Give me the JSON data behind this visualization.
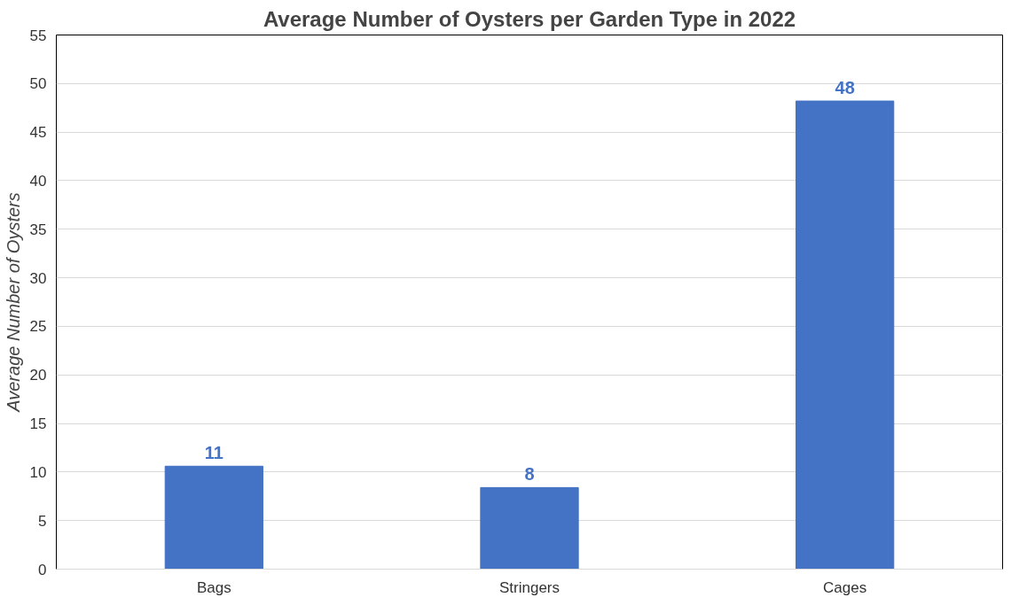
{
  "chart_data": {
    "type": "bar",
    "title": "Average Number of Oysters per Garden Type in 2022",
    "ylabel": "Average Number of Oysters",
    "categories": [
      "Bags",
      "Stringers",
      "Cages"
    ],
    "values": [
      10.6,
      8.4,
      48.2
    ],
    "value_labels": [
      "11",
      "8",
      "48"
    ],
    "color": "#4472c4",
    "ylim": [
      0,
      55
    ],
    "yticks": [
      0,
      5,
      10,
      15,
      20,
      25,
      30,
      35,
      40,
      45,
      50,
      55
    ],
    "grid": "y"
  }
}
